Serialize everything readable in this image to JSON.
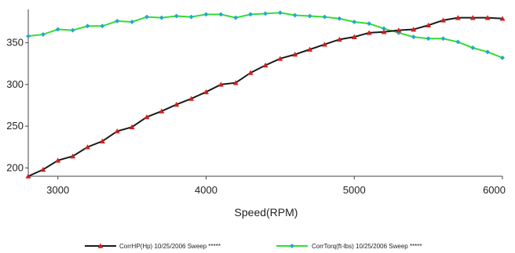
{
  "chart_data": {
    "type": "line",
    "xlabel": "Speed(RPM)",
    "ylabel": "",
    "xlim": [
      2800,
      6000
    ],
    "ylim": [
      190,
      390
    ],
    "xticks": [
      3000,
      4000,
      5000,
      6000
    ],
    "yticks": [
      200,
      250,
      300,
      350
    ],
    "grid": false,
    "legend_position": "bottom",
    "x": [
      2800,
      2900,
      3000,
      3100,
      3200,
      3300,
      3400,
      3500,
      3600,
      3700,
      3800,
      3900,
      4000,
      4100,
      4200,
      4300,
      4400,
      4500,
      4600,
      4700,
      4800,
      4900,
      5000,
      5100,
      5200,
      5300,
      5400,
      5500,
      5600,
      5700,
      5800,
      5900,
      6000
    ],
    "series": [
      {
        "name": "CorrHP(Hp) 10/25/2006 Sweep *****",
        "color": "#1a1a1a",
        "marker_color": "#d02020",
        "marker": "triangle",
        "values": [
          190,
          198,
          209,
          214,
          225,
          232,
          244,
          249,
          261,
          268,
          276,
          283,
          291,
          300,
          302,
          314,
          323,
          331,
          336,
          342,
          348,
          354,
          357,
          362,
          363,
          365,
          366,
          371,
          377,
          380,
          380,
          380,
          379
        ]
      },
      {
        "name": "CorrTorq(ft-lbs) 10/25/2006 Sweep *****",
        "color": "#33dd33",
        "marker_color": "#22aacc",
        "marker": "diamond",
        "values": [
          358,
          360,
          366,
          365,
          370,
          370,
          376,
          375,
          381,
          380,
          382,
          381,
          384,
          384,
          380,
          384,
          385,
          386,
          383,
          382,
          381,
          379,
          375,
          373,
          367,
          362,
          357,
          355,
          355,
          351,
          344,
          339,
          332
        ]
      }
    ]
  }
}
